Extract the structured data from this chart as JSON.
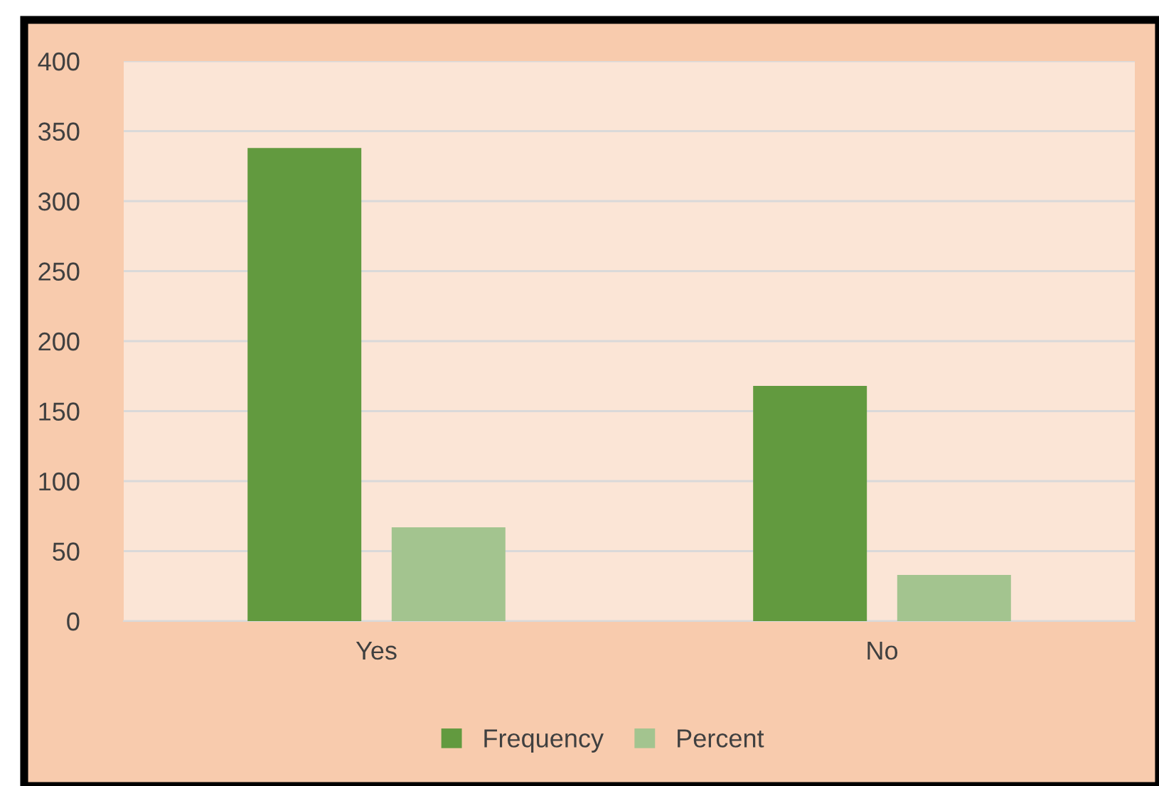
{
  "chart_data": {
    "type": "bar",
    "categories": [
      "Yes",
      "No"
    ],
    "series": [
      {
        "name": "Frequency",
        "color": "#629a3f",
        "values": [
          338,
          168
        ]
      },
      {
        "name": "Percent",
        "color": "#a3c48f",
        "values": [
          67,
          33
        ]
      }
    ],
    "ylim": [
      0,
      400
    ],
    "yticks": [
      0,
      50,
      100,
      150,
      200,
      250,
      300,
      350,
      400
    ],
    "grid": "y",
    "legend": "bottom"
  }
}
